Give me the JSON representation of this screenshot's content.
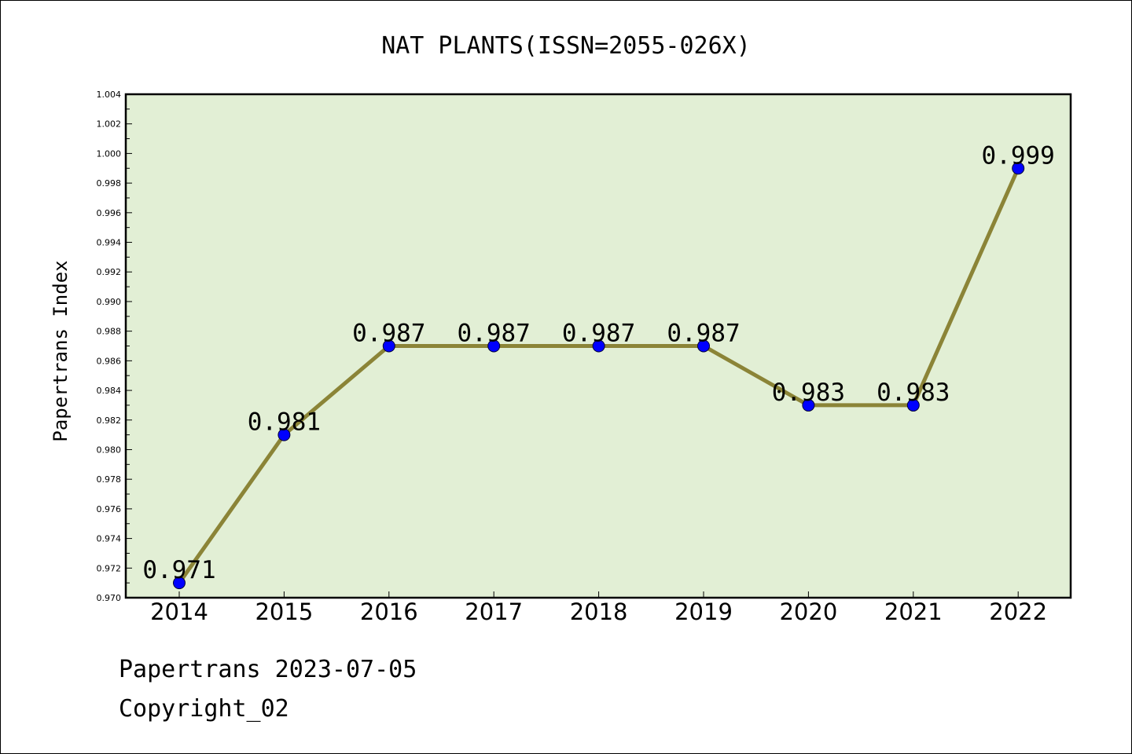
{
  "chart_data": {
    "type": "line",
    "title": "NAT PLANTS(ISSN=2055-026X)",
    "xlabel": "",
    "ylabel": "Papertrans Index",
    "categories": [
      "2014",
      "2015",
      "2016",
      "2017",
      "2018",
      "2019",
      "2020",
      "2021",
      "2022"
    ],
    "series": [
      {
        "values": [
          0.971,
          0.981,
          0.987,
          0.987,
          0.987,
          0.987,
          0.983,
          0.983,
          0.999
        ]
      }
    ],
    "data_labels": [
      "0.971",
      "0.981",
      "0.987",
      "0.987",
      "0.987",
      "0.987",
      "0.983",
      "0.983",
      "0.999"
    ],
    "ylim": [
      0.97,
      1.004
    ],
    "yticks": [
      "0.970",
      "0.972",
      "0.974",
      "0.976",
      "0.978",
      "0.980",
      "0.982",
      "0.984",
      "0.986",
      "0.988",
      "0.990",
      "0.992",
      "0.994",
      "0.996",
      "0.998",
      "1.000",
      "1.002",
      "1.004"
    ],
    "grid": false,
    "colors": {
      "plot_background": "#e2efd5",
      "line": "#8b8437",
      "marker": "#0000ff"
    }
  },
  "footer": {
    "date_line": "Papertrans 2023-07-05",
    "copyright_line": "Copyright_02"
  }
}
